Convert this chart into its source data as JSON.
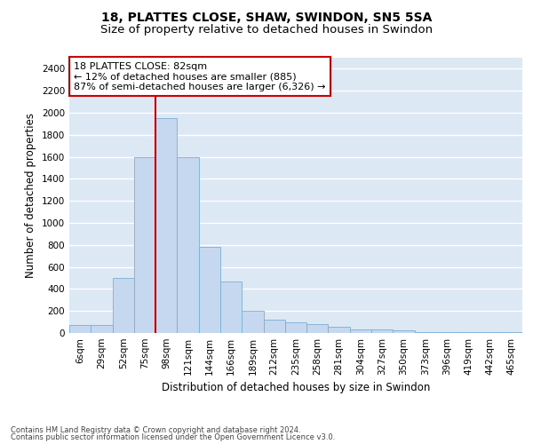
{
  "title1": "18, PLATTES CLOSE, SHAW, SWINDON, SN5 5SA",
  "title2": "Size of property relative to detached houses in Swindon",
  "xlabel": "Distribution of detached houses by size in Swindon",
  "ylabel": "Number of detached properties",
  "footnote1": "Contains HM Land Registry data © Crown copyright and database right 2024.",
  "footnote2": "Contains public sector information licensed under the Open Government Licence v3.0.",
  "annotation_line1": "18 PLATTES CLOSE: 82sqm",
  "annotation_line2": "← 12% of detached houses are smaller (885)",
  "annotation_line3": "87% of semi-detached houses are larger (6,326) →",
  "bar_labels": [
    "6sqm",
    "29sqm",
    "52sqm",
    "75sqm",
    "98sqm",
    "121sqm",
    "144sqm",
    "166sqm",
    "189sqm",
    "212sqm",
    "235sqm",
    "258sqm",
    "281sqm",
    "304sqm",
    "327sqm",
    "350sqm",
    "373sqm",
    "396sqm",
    "419sqm",
    "442sqm",
    "465sqm"
  ],
  "bar_values": [
    75,
    75,
    500,
    1600,
    1950,
    1600,
    780,
    470,
    200,
    120,
    100,
    80,
    55,
    30,
    30,
    25,
    10,
    10,
    10,
    10,
    10
  ],
  "bar_color": "#c5d8ef",
  "bar_edge_color": "#7badd4",
  "red_line_x": 3.5,
  "ylim": [
    0,
    2500
  ],
  "yticks": [
    0,
    200,
    400,
    600,
    800,
    1000,
    1200,
    1400,
    1600,
    1800,
    2000,
    2200,
    2400
  ],
  "background_color": "#dde8f5",
  "grid_color": "#ffffff",
  "annotation_box_color": "#ffffff",
  "annotation_box_edge": "#cc0000",
  "red_line_color": "#cc0000",
  "title_fontsize": 10,
  "subtitle_fontsize": 9.5,
  "axis_label_fontsize": 8.5,
  "tick_fontsize": 7.5,
  "annotation_fontsize": 8,
  "footnote_fontsize": 6
}
